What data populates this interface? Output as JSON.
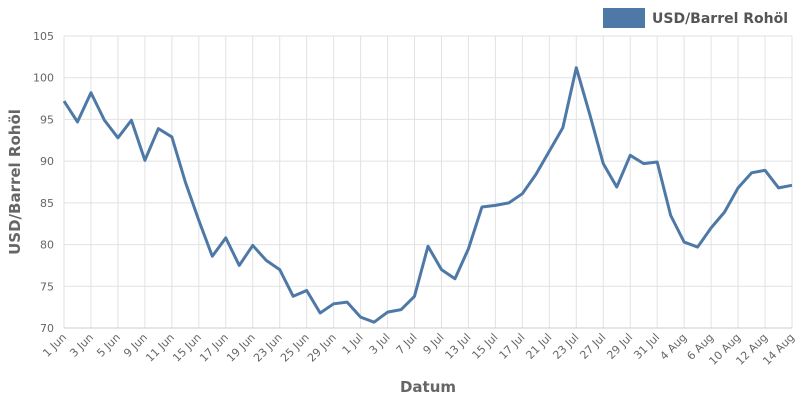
{
  "chart_data": {
    "type": "line",
    "x_label": "Datum",
    "y_label": "USD/Barrel Rohöl",
    "categories": [
      "1 Jun",
      null,
      "3 Jun",
      null,
      "5 Jun",
      null,
      "9 Jun",
      null,
      "11 Jun",
      null,
      "15 Jun",
      null,
      "17 Jun",
      null,
      "19 Jun",
      null,
      "23 Jun",
      null,
      "25 Jun",
      null,
      "29 Jun",
      null,
      "1 Jul",
      null,
      "3 Jul",
      null,
      "7 Jul",
      null,
      "9 Jul",
      null,
      "13 Jul",
      null,
      "15 Jul",
      null,
      "17 Jul",
      null,
      "21 Jul",
      null,
      "23 Jul",
      null,
      "27 Jul",
      null,
      "29 Jul",
      null,
      "31 Jul",
      null,
      "4 Aug",
      null,
      "6 Aug",
      null,
      "10 Aug",
      null,
      "12 Aug",
      null,
      "14 Aug"
    ],
    "series": [
      {
        "name": "USD/Barrel Rohöl",
        "color": "#4e79a7",
        "values": [
          97.2,
          94.7,
          98.2,
          94.9,
          92.8,
          94.9,
          90.1,
          93.9,
          92.9,
          87.5,
          82.9,
          78.6,
          80.8,
          77.5,
          79.9,
          78.1,
          77.0,
          73.8,
          74.5,
          71.8,
          72.9,
          73.1,
          71.3,
          70.7,
          71.9,
          72.2,
          73.8,
          79.8,
          77.0,
          75.9,
          79.5,
          84.5,
          84.7,
          85.0,
          86.1,
          88.4,
          91.2,
          94.0,
          101.2,
          95.6,
          89.7,
          86.9,
          90.7,
          89.7,
          89.9,
          83.5,
          80.3,
          79.7,
          82.0,
          83.9,
          86.8,
          88.6,
          88.9,
          86.8,
          87.1
        ]
      }
    ],
    "ylim": [
      70,
      105
    ],
    "yticks": [
      70,
      75,
      80,
      85,
      90,
      95,
      100,
      105
    ],
    "grid": true,
    "legend": "top-right"
  }
}
